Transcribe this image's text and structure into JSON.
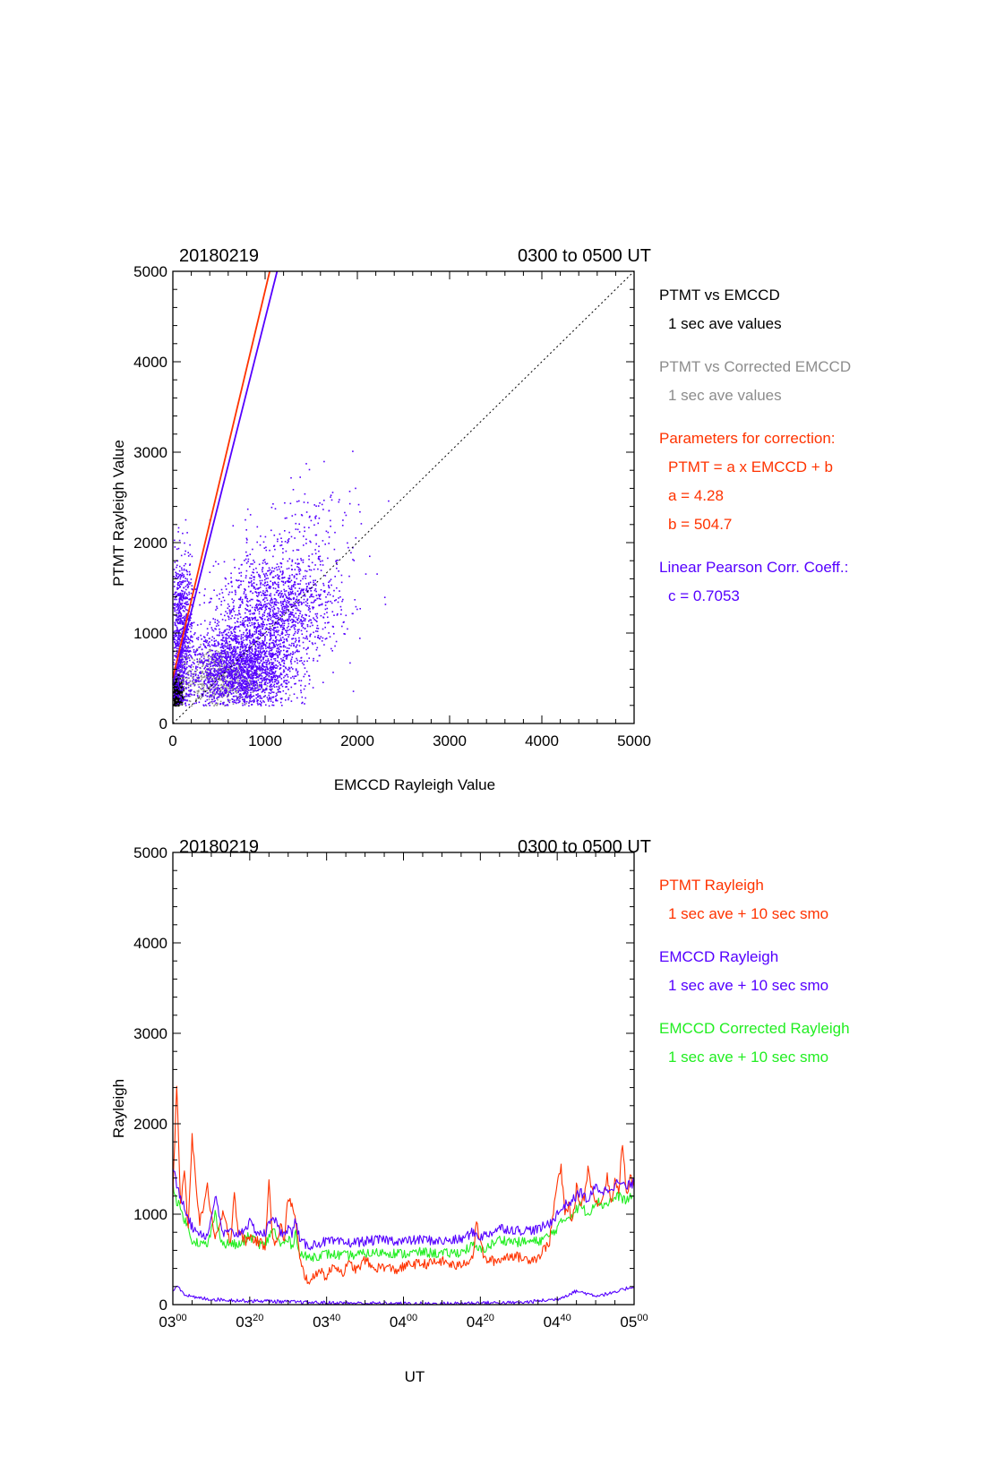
{
  "colors": {
    "red": "#ff3300",
    "blue": "#5500ff",
    "green": "#22ee22",
    "gray": "#8c8c8c",
    "black": "#000000"
  },
  "chart_data": [
    {
      "type": "scatter",
      "date": "20180219",
      "time_range": "0300 to 0500 UT",
      "xlabel": "EMCCD Rayleigh Value",
      "ylabel": "PTMT Rayleigh Value",
      "xlim": [
        0,
        5000
      ],
      "ylim": [
        0,
        5000
      ],
      "xticks": [
        "0",
        "1000",
        "2000",
        "3000",
        "4000",
        "5000"
      ],
      "yticks": [
        "0",
        "1000",
        "2000",
        "3000",
        "4000",
        "5000"
      ],
      "identity_line": {
        "x": [
          0,
          5000
        ],
        "y": [
          0,
          5000
        ],
        "style": "dotted"
      },
      "fit_lines": [
        {
          "color": "red",
          "x": [
            0,
            1050
          ],
          "y": [
            504.7,
            5000
          ]
        },
        {
          "color": "blue",
          "x": [
            0,
            1130
          ],
          "y": [
            430,
            5000
          ]
        }
      ],
      "scatter_clusters": [
        {
          "series": "PTMT vs EMCCD",
          "color": "black",
          "x_center": 40,
          "y_center": 330,
          "x_spread": 30,
          "y_spread": 90,
          "n": 700
        },
        {
          "series": "PTMT vs EMCCD",
          "color": "blue",
          "x_center": 80,
          "y_center": 950,
          "x_spread": 60,
          "y_spread": 450,
          "n": 900
        },
        {
          "series": "PTMT vs Corrected EMCCD",
          "color": "gray",
          "x_center": 500,
          "y_center": 500,
          "x_spread": 230,
          "y_spread": 180,
          "n": 600
        },
        {
          "series": "PTMT vs Corrected EMCCD",
          "color": "blue",
          "x_center": 750,
          "y_center": 600,
          "x_spread": 280,
          "y_spread": 260,
          "n": 2200
        },
        {
          "series": "PTMT vs Corrected EMCCD",
          "color": "blue",
          "x_center": 1150,
          "y_center": 1300,
          "x_spread": 320,
          "y_spread": 300,
          "n": 1300
        },
        {
          "series": "PTMT vs Corrected EMCCD",
          "color": "blue",
          "x_center": 1500,
          "y_center": 2200,
          "x_spread": 300,
          "y_spread": 300,
          "n": 120
        }
      ],
      "legend": {
        "placement": "right",
        "entries": [
          {
            "text": "PTMT vs EMCCD",
            "color": "black",
            "indent": false
          },
          {
            "text": "1 sec ave values",
            "color": "black",
            "indent": true
          },
          {
            "text": "PTMT vs Corrected EMCCD",
            "color": "gray",
            "indent": false
          },
          {
            "text": "1 sec ave values",
            "color": "gray",
            "indent": true
          },
          {
            "text": "Parameters for correction:",
            "color": "red",
            "indent": false
          },
          {
            "text": "PTMT = a x EMCCD + b",
            "color": "red",
            "indent": true
          },
          {
            "text": "a = 4.28",
            "color": "red",
            "indent": true
          },
          {
            "text": "b =  504.7",
            "color": "red",
            "indent": true
          },
          {
            "text": "Linear Pearson Corr. Coeff.:",
            "color": "blue",
            "indent": false
          },
          {
            "text": "c = 0.7053",
            "color": "blue",
            "indent": true
          }
        ]
      }
    },
    {
      "type": "line",
      "date": "20180219",
      "time_range": "0300 to 0500 UT",
      "xlabel": "UT",
      "ylabel": "Rayleigh",
      "xlim": [
        0,
        120
      ],
      "ylim": [
        0,
        5000
      ],
      "xticks": [
        {
          "hh": "03",
          "mm": "00"
        },
        {
          "hh": "03",
          "mm": "20"
        },
        {
          "hh": "03",
          "mm": "40"
        },
        {
          "hh": "04",
          "mm": "00"
        },
        {
          "hh": "04",
          "mm": "20"
        },
        {
          "hh": "04",
          "mm": "40"
        },
        {
          "hh": "05",
          "mm": "00"
        }
      ],
      "yticks": [
        "0",
        "1000",
        "2000",
        "3000",
        "4000",
        "5000"
      ],
      "x_units": "minutes after 03:00 UT",
      "series": [
        {
          "name": "PTMT Rayleigh",
          "color": "red",
          "x": [
            0,
            1,
            2,
            3,
            4,
            5,
            7,
            9,
            11,
            13,
            15,
            16,
            17,
            19,
            20,
            22,
            24,
            25,
            26,
            27,
            28,
            29,
            30,
            31,
            32,
            33,
            34,
            35,
            36,
            38,
            40,
            42,
            44,
            46,
            48,
            50,
            52,
            55,
            58,
            62,
            66,
            70,
            74,
            78,
            79,
            80,
            81,
            84,
            88,
            92,
            95,
            98,
            100,
            101,
            102,
            103,
            104,
            105,
            106,
            107,
            108,
            110,
            112,
            113,
            114,
            115,
            116,
            117,
            118,
            119,
            120
          ],
          "y": [
            1200,
            2450,
            1100,
            1500,
            800,
            1850,
            900,
            1300,
            700,
            1000,
            700,
            1250,
            800,
            700,
            750,
            700,
            650,
            1400,
            700,
            650,
            900,
            700,
            1200,
            1100,
            900,
            500,
            350,
            280,
            250,
            400,
            300,
            450,
            350,
            450,
            380,
            500,
            400,
            420,
            380,
            450,
            450,
            480,
            420,
            520,
            900,
            700,
            500,
            480,
            550,
            500,
            520,
            700,
            1350,
            1500,
            1000,
            1100,
            900,
            1300,
            1100,
            1200,
            1500,
            1100,
            1200,
            1450,
            1100,
            1400,
            1250,
            1800,
            1200,
            1400,
            1300
          ]
        },
        {
          "name": "EMCCD Rayleigh",
          "color": "blue",
          "x": [
            0,
            1,
            3,
            5,
            7,
            9,
            11,
            13,
            15,
            17,
            20,
            22,
            24,
            26,
            28,
            30,
            31,
            32,
            33,
            35,
            40,
            45,
            50,
            55,
            60,
            65,
            70,
            75,
            78,
            80,
            82,
            85,
            90,
            95,
            98,
            100,
            102,
            104,
            106,
            108,
            110,
            112,
            114,
            116,
            118,
            120
          ],
          "y": [
            1550,
            1300,
            1100,
            850,
            800,
            750,
            1200,
            780,
            800,
            780,
            900,
            800,
            780,
            1000,
            780,
            850,
            780,
            950,
            700,
            650,
            700,
            680,
            700,
            720,
            700,
            720,
            700,
            720,
            800,
            750,
            780,
            850,
            820,
            830,
            900,
            1000,
            1100,
            1150,
            1250,
            1150,
            1300,
            1250,
            1300,
            1350,
            1300,
            1350
          ]
        },
        {
          "name": "EMCCD Rayleigh",
          "color": "blue",
          "x": [
            0,
            1,
            3,
            5,
            10,
            15,
            20,
            25,
            30,
            40,
            50,
            60,
            70,
            80,
            90,
            95,
            100,
            105,
            110,
            115,
            118,
            120
          ],
          "y": [
            150,
            220,
            120,
            80,
            60,
            50,
            40,
            40,
            30,
            20,
            15,
            10,
            10,
            20,
            20,
            40,
            60,
            150,
            100,
            130,
            180,
            200
          ]
        },
        {
          "name": "EMCCD Corrected Rayleigh",
          "color": "green",
          "x": [
            0,
            1,
            3,
            5,
            7,
            9,
            11,
            13,
            15,
            17,
            20,
            22,
            24,
            26,
            28,
            30,
            31,
            32,
            33,
            35,
            40,
            45,
            50,
            55,
            60,
            65,
            70,
            75,
            78,
            80,
            82,
            85,
            90,
            95,
            98,
            100,
            102,
            104,
            106,
            108,
            110,
            112,
            114,
            116,
            118,
            120
          ],
          "y": [
            1350,
            1150,
            950,
            720,
            680,
            650,
            1000,
            660,
            680,
            650,
            760,
            680,
            650,
            850,
            650,
            720,
            650,
            800,
            560,
            520,
            560,
            540,
            560,
            580,
            560,
            580,
            560,
            580,
            650,
            600,
            640,
            720,
            690,
            700,
            760,
            850,
            950,
            1000,
            1100,
            1000,
            1150,
            1100,
            1150,
            1200,
            1150,
            1200
          ]
        }
      ],
      "legend": {
        "placement": "right",
        "entries": [
          {
            "text": "PTMT Rayleigh",
            "color": "red",
            "indent": false
          },
          {
            "text": "1 sec ave + 10 sec smo",
            "color": "red",
            "indent": true
          },
          {
            "text": "EMCCD Rayleigh",
            "color": "blue",
            "indent": false
          },
          {
            "text": "1 sec ave + 10 sec smo",
            "color": "blue",
            "indent": true
          },
          {
            "text": "EMCCD Corrected Rayleigh",
            "color": "green",
            "indent": false
          },
          {
            "text": "1 sec ave + 10 sec smo",
            "color": "green",
            "indent": true
          }
        ]
      }
    }
  ]
}
